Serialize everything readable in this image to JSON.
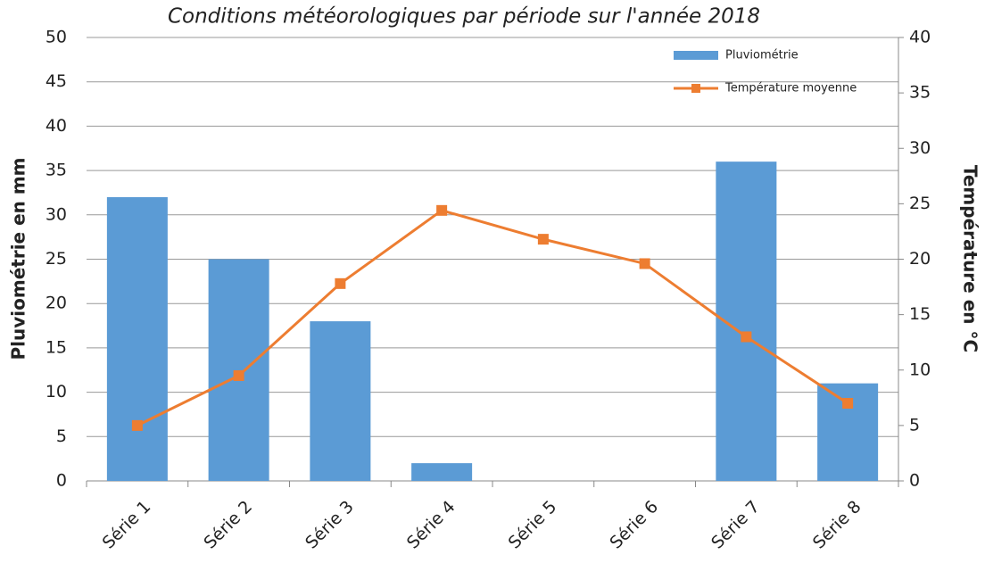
{
  "chart_data": {
    "type": "bar",
    "title": "Conditions météorologiques par période sur l'année 2018",
    "y_label": "Pluviométrie en mm",
    "y2_label": "Température en °C",
    "categories": [
      "Série 1",
      "Série 2",
      "Série 3",
      "Série 4",
      "Série 5",
      "Série 6",
      "Série 7",
      "Série 8"
    ],
    "series": [
      {
        "name": "Pluviométrie",
        "type": "bar",
        "color": "#5b9bd5",
        "values": [
          32,
          25,
          18,
          2,
          0,
          0,
          36,
          11
        ]
      },
      {
        "name": "Température moyenne",
        "type": "line",
        "axis": "y2",
        "color": "#ed7d31",
        "values": [
          5,
          9.5,
          17.8,
          24.4,
          21.8,
          19.6,
          13,
          7
        ]
      }
    ],
    "ylim": [
      0,
      50
    ],
    "yticks": [
      0,
      5,
      10,
      15,
      20,
      25,
      30,
      35,
      40,
      45,
      50
    ],
    "y2lim": [
      0,
      40
    ],
    "y2ticks": [
      0,
      5,
      10,
      15,
      20,
      25,
      30,
      35,
      40
    ],
    "grid": true,
    "legend": "top-right"
  }
}
